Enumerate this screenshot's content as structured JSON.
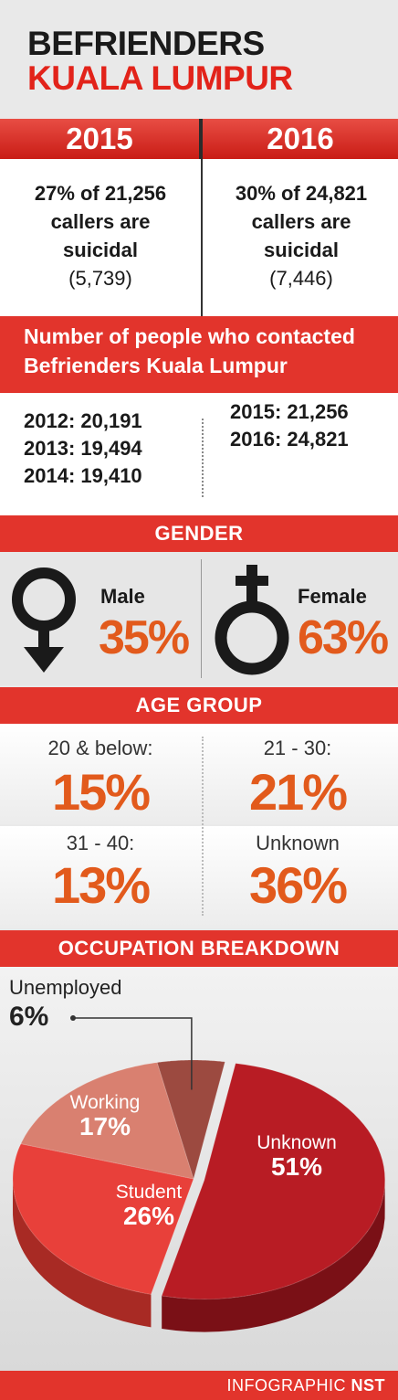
{
  "header": {
    "title_line1": "BEFRIENDERS",
    "title_line2": "KUALA LUMPUR"
  },
  "suicidal_stats": {
    "y2015": {
      "year": "2015",
      "text": "27% of 21,256 callers are suicidal",
      "line1": "27% of 21,256",
      "line2": "callers are",
      "line3": "suicidal",
      "count": "(5,739)"
    },
    "y2016": {
      "year": "2016",
      "text": "30% of 24,821 callers are suicidal",
      "line1": "30% of 24,821",
      "line2": "callers are",
      "line3": "suicidal",
      "count": "(7,446)"
    }
  },
  "contacts": {
    "heading_line1": "Number of people who contacted",
    "heading_line2": "Befrienders Kuala Lumpur",
    "left": [
      "2012: 20,191",
      "2013: 19,494",
      "2014: 19,410"
    ],
    "right": [
      "2015: 21,256",
      "2016: 24,821"
    ]
  },
  "gender": {
    "heading": "GENDER",
    "male_label": "Male",
    "male_pct": "35%",
    "female_label": "Female",
    "female_pct": "63%"
  },
  "age_group": {
    "heading": "AGE GROUP",
    "items": [
      {
        "label": "20 & below:",
        "pct": "15%"
      },
      {
        "label": "21 - 30:",
        "pct": "21%"
      },
      {
        "label": "31 - 40:",
        "pct": "13%"
      },
      {
        "label": "Unknown",
        "pct": "36%"
      }
    ]
  },
  "occupation": {
    "heading": "OCCUPATION BREAKDOWN"
  },
  "footer": {
    "text_prefix": "INFOGRAPHIC ",
    "text_brand": "NST"
  },
  "colors": {
    "accent": "#e2342c",
    "orange": "#e25a1c",
    "unknown": "#b81c24",
    "student": "#e8403a",
    "working": "#d98070",
    "unemployed": "#9c4a40"
  },
  "chart_data": {
    "type": "pie",
    "title": "OCCUPATION BREAKDOWN",
    "categories": [
      "Unknown",
      "Student",
      "Working",
      "Unemployed"
    ],
    "values": [
      51,
      26,
      17,
      6
    ],
    "value_labels": [
      "51%",
      "26%",
      "17%",
      "6%"
    ]
  }
}
